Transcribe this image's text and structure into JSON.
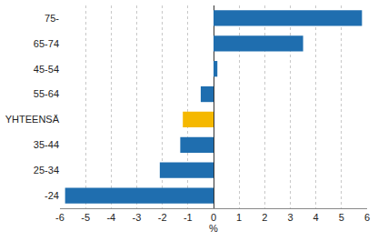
{
  "chart_data": {
    "type": "bar",
    "orientation": "horizontal",
    "categories": [
      "75-",
      "65-74",
      "45-54",
      "55-64",
      "YHTEENSÄ",
      "35-44",
      "25-34",
      "-24"
    ],
    "values": [
      5.8,
      3.5,
      0.15,
      -0.5,
      -1.2,
      -1.3,
      -2.1,
      -5.8
    ],
    "colors": [
      "#1f6eaf",
      "#1f6eaf",
      "#1f6eaf",
      "#1f6eaf",
      "#f5b800",
      "#1f6eaf",
      "#1f6eaf",
      "#1f6eaf"
    ],
    "x_label": "%",
    "xlim": [
      -6,
      6
    ],
    "xticks": [
      -6,
      -5,
      -4,
      -3,
      -2,
      -1,
      0,
      1,
      2,
      3,
      4,
      5,
      6
    ],
    "grid": true
  }
}
